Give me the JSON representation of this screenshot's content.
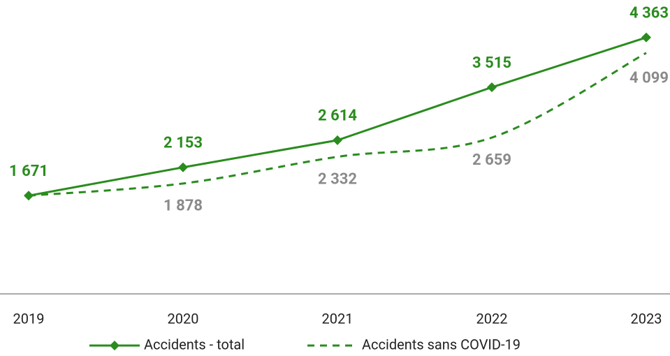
{
  "chart_data": {
    "type": "line",
    "categories": [
      "2019",
      "2020",
      "2021",
      "2022",
      "2023"
    ],
    "series": [
      {
        "name": "Accidents - total",
        "color": "#2a8c1e",
        "dash": false,
        "marker": "diamond",
        "values": [
          1671,
          2153,
          2614,
          3515,
          4363
        ],
        "value_labels": [
          "1 671",
          "2 153",
          "2 614",
          "3 515",
          "4 363"
        ]
      },
      {
        "name": "Accidents sans COVID-19",
        "color": "#2a8c1e",
        "dash": true,
        "marker": null,
        "values": [
          1671,
          1878,
          2332,
          2659,
          4099
        ],
        "value_labels": [
          null,
          "1 878",
          "2 332",
          "2 659",
          "4 099"
        ]
      }
    ],
    "ylim": [
      0,
      5000
    ],
    "legend": "bottom"
  }
}
